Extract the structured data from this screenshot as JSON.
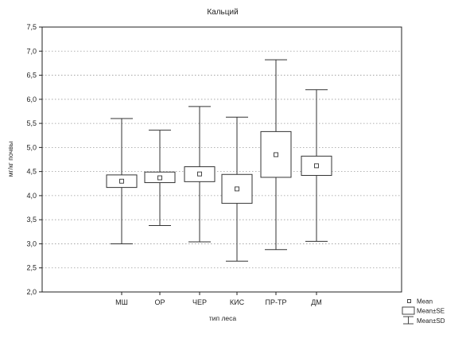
{
  "chart_data": {
    "type": "boxplot",
    "title": "Кальций",
    "xlabel": "тип леса",
    "ylabel": "мг/кг почвы",
    "ylim": [
      2.0,
      7.5
    ],
    "y_ticks": [
      "2,0",
      "2,5",
      "3,0",
      "3,5",
      "4,0",
      "4,5",
      "5,0",
      "5,5",
      "6,0",
      "6,5",
      "7,0",
      "7,5"
    ],
    "grid": true,
    "grid_style": "dotted",
    "legend_position": "bottom-right",
    "legend": {
      "mean": "Mean",
      "se": "Mean±SE",
      "sd": "Mean±SD"
    },
    "categories": [
      "МШ",
      "ОР",
      "ЧЕР",
      "КИС",
      "ПР-ТР",
      "ДМ"
    ],
    "series": [
      {
        "category": "МШ",
        "mean": 4.3,
        "se_low": 4.17,
        "se_high": 4.43,
        "sd_low": 3.0,
        "sd_high": 5.6
      },
      {
        "category": "ОР",
        "mean": 4.37,
        "se_low": 4.27,
        "se_high": 4.49,
        "sd_low": 3.38,
        "sd_high": 5.36
      },
      {
        "category": "ЧЕР",
        "mean": 4.45,
        "se_low": 4.29,
        "se_high": 4.6,
        "sd_low": 3.04,
        "sd_high": 5.85
      },
      {
        "category": "КИС",
        "mean": 4.14,
        "se_low": 3.84,
        "se_high": 4.44,
        "sd_low": 2.64,
        "sd_high": 5.63
      },
      {
        "category": "ПР-ТР",
        "mean": 4.85,
        "se_low": 4.38,
        "se_high": 5.33,
        "sd_low": 2.88,
        "sd_high": 6.82
      },
      {
        "category": "ДМ",
        "mean": 4.62,
        "se_low": 4.42,
        "se_high": 4.82,
        "sd_low": 3.05,
        "sd_high": 6.2
      }
    ],
    "colors": {
      "frame": "#222222",
      "grid": "#9a9a9a",
      "box_fill": "#ffffff",
      "stroke": "#333333"
    }
  }
}
